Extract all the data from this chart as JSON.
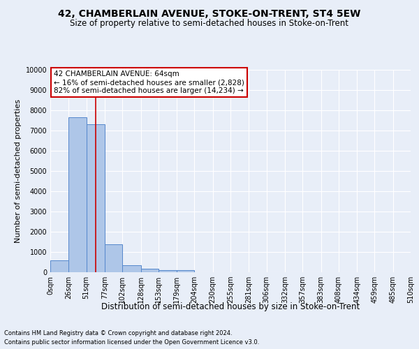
{
  "title": "42, CHAMBERLAIN AVENUE, STOKE-ON-TRENT, ST4 5EW",
  "subtitle": "Size of property relative to semi-detached houses in Stoke-on-Trent",
  "xlabel": "Distribution of semi-detached houses by size in Stoke-on-Trent",
  "ylabel": "Number of semi-detached properties",
  "footer_line1": "Contains HM Land Registry data © Crown copyright and database right 2024.",
  "footer_line2": "Contains public sector information licensed under the Open Government Licence v3.0.",
  "annotation_title": "42 CHAMBERLAIN AVENUE: 64sqm",
  "annotation_line1": "← 16% of semi-detached houses are smaller (2,828)",
  "annotation_line2": "82% of semi-detached houses are larger (14,234) →",
  "property_size": 64,
  "bin_edges": [
    0,
    26,
    51,
    77,
    102,
    128,
    153,
    179,
    204,
    230,
    255,
    281,
    306,
    332,
    357,
    383,
    408,
    434,
    459,
    485,
    510
  ],
  "bar_values": [
    600,
    7650,
    7300,
    1380,
    350,
    175,
    120,
    90,
    0,
    0,
    0,
    0,
    0,
    0,
    0,
    0,
    0,
    0,
    0,
    0
  ],
  "bar_color": "#aec6e8",
  "bar_edge_color": "#5588cc",
  "red_line_color": "#cc0000",
  "annotation_box_color": "#cc0000",
  "background_color": "#e8eef8",
  "grid_color": "#ffffff",
  "ylim": [
    0,
    10000
  ],
  "yticks": [
    0,
    1000,
    2000,
    3000,
    4000,
    5000,
    6000,
    7000,
    8000,
    9000,
    10000
  ],
  "title_fontsize": 10,
  "subtitle_fontsize": 8.5,
  "ylabel_fontsize": 8,
  "xlabel_fontsize": 8.5,
  "tick_fontsize": 7,
  "annotation_fontsize": 7.5,
  "footer_fontsize": 6
}
